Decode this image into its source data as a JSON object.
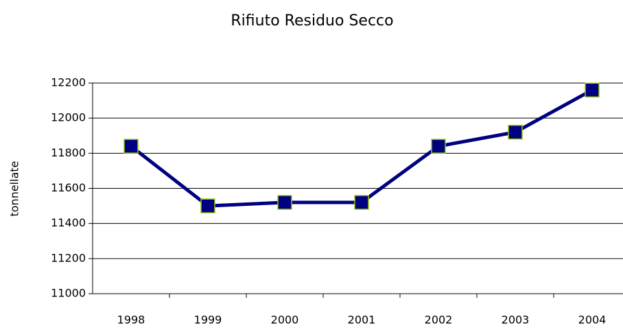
{
  "chart_data": {
    "type": "line",
    "title": "Rifiuto Residuo Secco",
    "y_label": "tonnellate",
    "categories": [
      "1998",
      "1999",
      "2000",
      "2001",
      "2002",
      "2003",
      "2004"
    ],
    "series": [
      {
        "name": "Rifiuto Residuo Secco",
        "color": "#000080",
        "marker_edge": "#99cc00",
        "values": [
          11840,
          11500,
          11520,
          11520,
          11840,
          11920,
          12160
        ]
      }
    ],
    "ylim": [
      11000,
      12200
    ],
    "yticks": [
      11000,
      11200,
      11400,
      11600,
      11800,
      12000,
      12200
    ],
    "grid": true
  }
}
